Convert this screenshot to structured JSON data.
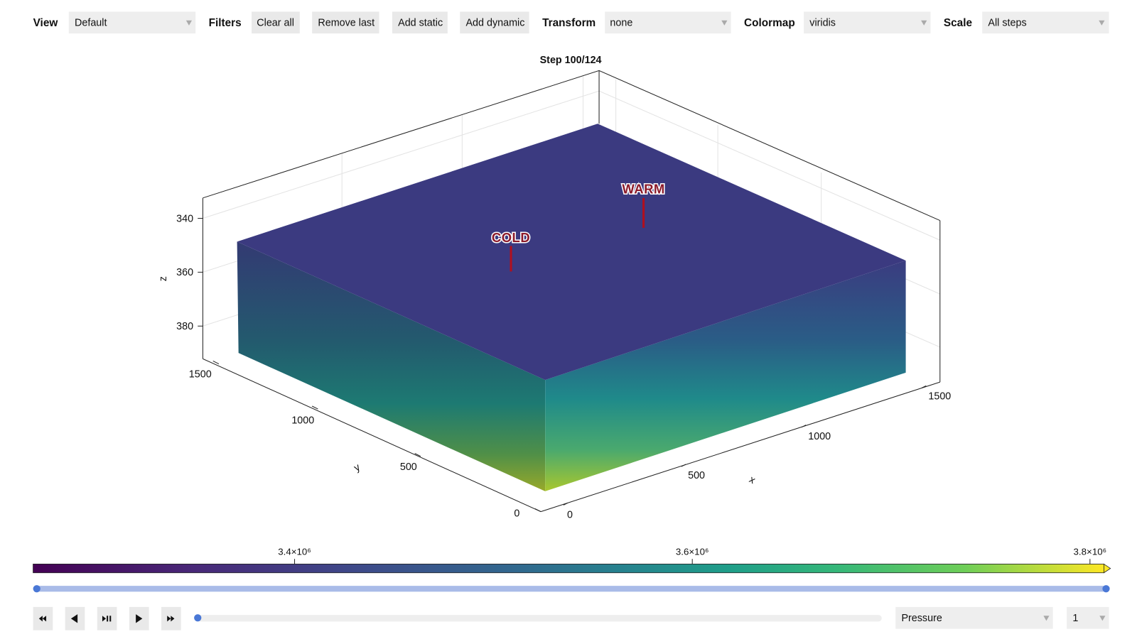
{
  "toolbar": {
    "view": {
      "label": "View",
      "value": "Default"
    },
    "filters": {
      "label": "Filters",
      "buttons": [
        "Clear all",
        "Remove last",
        "Add static",
        "Add dynamic"
      ]
    },
    "transform": {
      "label": "Transform",
      "value": "none"
    },
    "colormap": {
      "label": "Colormap",
      "value": "viridis"
    },
    "scale": {
      "label": "Scale",
      "value": "All steps"
    }
  },
  "plot": {
    "title": "Step 100/124",
    "axes": {
      "x": {
        "label": "x",
        "ticks": [
          0,
          500,
          1000,
          1500
        ]
      },
      "y": {
        "label": "y",
        "ticks": [
          0,
          500,
          1000,
          1500
        ]
      },
      "z": {
        "label": "z",
        "ticks": [
          340,
          360,
          380
        ]
      }
    },
    "annotations": [
      "COLD",
      "WARM"
    ],
    "colorbar": {
      "range": [
        3268500,
        3807000
      ],
      "ticks": [
        {
          "value": 3400000,
          "label": "3.4×10⁶"
        },
        {
          "value": 3600000,
          "label": "3.6×10⁶"
        },
        {
          "value": 3800000,
          "label": "3.8×10⁶"
        }
      ]
    }
  },
  "controls": {
    "variable": "Pressure",
    "component": "1"
  }
}
